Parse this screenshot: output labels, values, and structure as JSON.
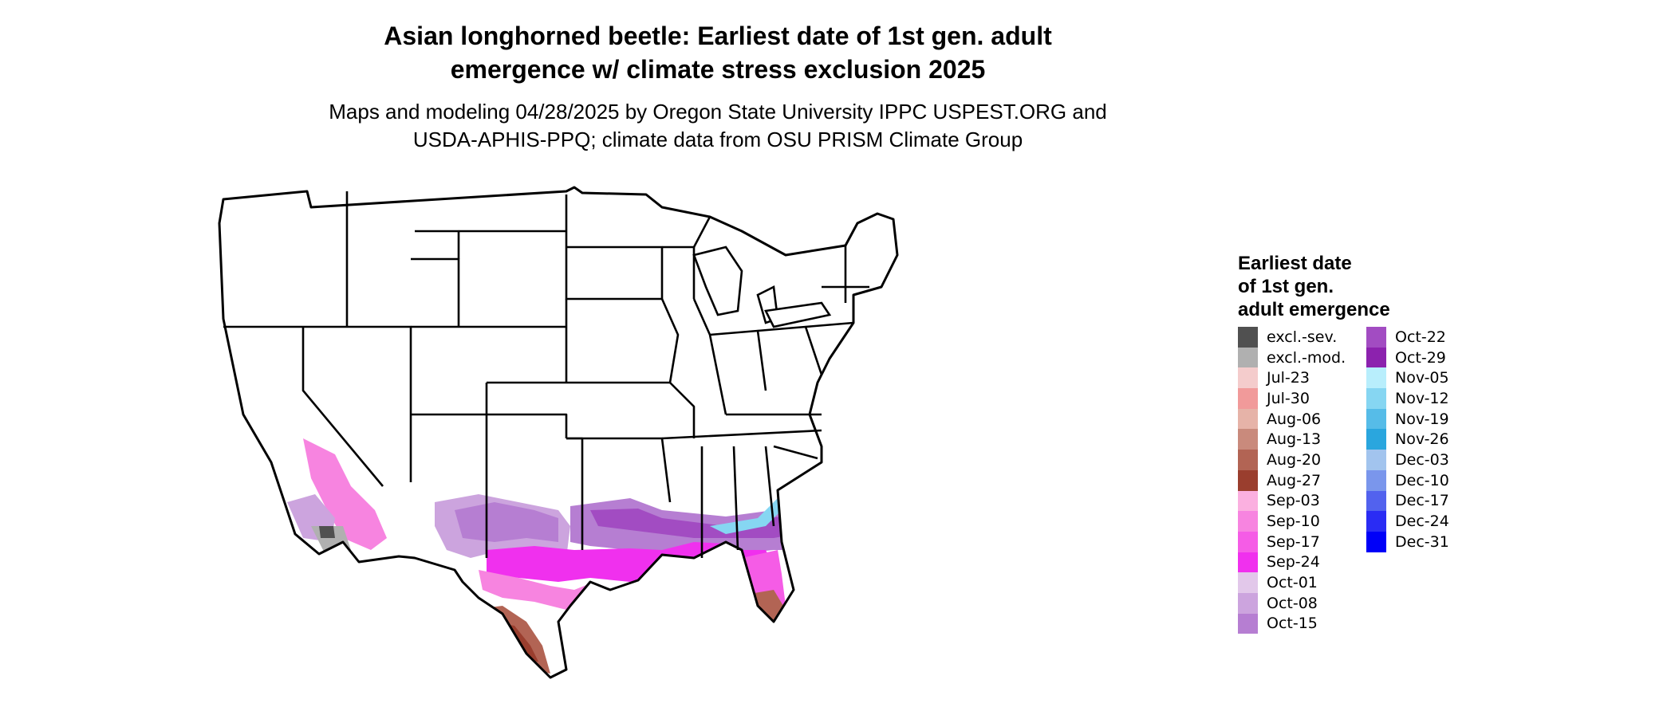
{
  "title_lines": [
    "Asian longhorned beetle: Earliest date of 1st gen. adult",
    "emergence w/ climate stress exclusion 2025"
  ],
  "subtitle_lines": [
    "Maps and modeling 04/28/2025 by Oregon State University IPPC USPEST.ORG and",
    "USDA-APHIS-PPQ; climate data from OSU PRISM Climate Group"
  ],
  "legend": {
    "title_lines": [
      "Earliest date",
      "of 1st gen.",
      "adult emergence"
    ],
    "items": [
      {
        "label": "excl.-sev.",
        "color": "#505050"
      },
      {
        "label": "excl.-mod.",
        "color": "#b0b0b0"
      },
      {
        "label": "Jul-23",
        "color": "#f4cccc"
      },
      {
        "label": "Jul-30",
        "color": "#f19a9a"
      },
      {
        "label": "Aug-06",
        "color": "#e6b3a8"
      },
      {
        "label": "Aug-13",
        "color": "#c98a7c"
      },
      {
        "label": "Aug-20",
        "color": "#b26454"
      },
      {
        "label": "Aug-27",
        "color": "#9a3e2e"
      },
      {
        "label": "Sep-03",
        "color": "#fbb0e0"
      },
      {
        "label": "Sep-10",
        "color": "#f784e0"
      },
      {
        "label": "Sep-17",
        "color": "#f55ce6"
      },
      {
        "label": "Sep-24",
        "color": "#f030ee"
      },
      {
        "label": "Oct-01",
        "color": "#e2c8ea"
      },
      {
        "label": "Oct-08",
        "color": "#cca4de"
      },
      {
        "label": "Oct-15",
        "color": "#b67ed2"
      },
      {
        "label": "Oct-22",
        "color": "#a24cc2"
      },
      {
        "label": "Oct-29",
        "color": "#8c22ae"
      },
      {
        "label": "Nov-05",
        "color": "#b8eefc"
      },
      {
        "label": "Nov-12",
        "color": "#86d6f2"
      },
      {
        "label": "Nov-19",
        "color": "#56bce8"
      },
      {
        "label": "Nov-26",
        "color": "#2aa6de"
      },
      {
        "label": "Dec-03",
        "color": "#a2c4ee"
      },
      {
        "label": "Dec-10",
        "color": "#7a96ec"
      },
      {
        "label": "Dec-17",
        "color": "#5262ee"
      },
      {
        "label": "Dec-24",
        "color": "#2a2cf4"
      },
      {
        "label": "Dec-31",
        "color": "#0000f8"
      }
    ]
  }
}
